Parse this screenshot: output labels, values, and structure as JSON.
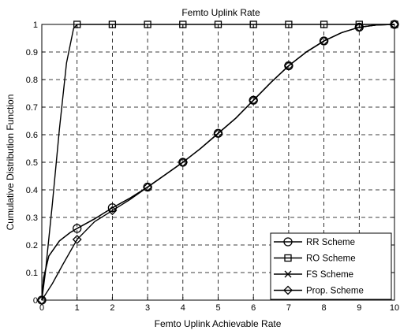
{
  "chart_data": {
    "type": "line",
    "title": "Femto Uplink Rate",
    "xlabel": "Femto Uplink Achievable Rate",
    "ylabel": "Cumulative Distribution Function",
    "xlim": [
      0,
      10
    ],
    "ylim": [
      0,
      1
    ],
    "xticks": [
      0,
      1,
      2,
      3,
      4,
      5,
      6,
      7,
      8,
      9,
      10
    ],
    "yticks": [
      0,
      0.1,
      0.2,
      0.3,
      0.4,
      0.5,
      0.6,
      0.7,
      0.8,
      0.9,
      1
    ],
    "grid": true,
    "legend_position": "bottom-right",
    "colors": {
      "line": "#000000",
      "background": "#ffffff"
    },
    "series": [
      {
        "name": "RR Scheme",
        "marker": "circle",
        "x": [
          0,
          0.05,
          0.2,
          0.5,
          0.8,
          1,
          1.5,
          2,
          2.5,
          3,
          3.5,
          4,
          4.5,
          5,
          5.5,
          6,
          6.5,
          7,
          7.5,
          8,
          8.5,
          9,
          9.5,
          10
        ],
        "y": [
          0,
          0.08,
          0.16,
          0.215,
          0.245,
          0.26,
          0.295,
          0.335,
          0.37,
          0.41,
          0.455,
          0.5,
          0.55,
          0.605,
          0.66,
          0.725,
          0.79,
          0.85,
          0.9,
          0.94,
          0.97,
          0.99,
          0.998,
          1
        ],
        "markers_x": [
          0,
          1,
          2,
          3,
          4,
          5,
          6,
          7,
          8,
          9,
          10
        ]
      },
      {
        "name": "RO Scheme",
        "marker": "square",
        "x": [
          0,
          0.1,
          0.3,
          0.5,
          0.7,
          0.9,
          1,
          2,
          3,
          4,
          5,
          6,
          7,
          8,
          9,
          10
        ],
        "y": [
          0,
          0.1,
          0.35,
          0.62,
          0.86,
          0.985,
          1,
          1,
          1,
          1,
          1,
          1,
          1,
          1,
          1,
          1
        ],
        "markers_x": [
          1,
          2,
          3,
          4,
          5,
          6,
          7,
          8,
          9,
          10
        ]
      },
      {
        "name": "FS Scheme",
        "marker": "x",
        "x": [
          0,
          0.05,
          0.2,
          0.5,
          0.8,
          1,
          1.5,
          2,
          2.5,
          3,
          3.5,
          4,
          4.5,
          5,
          5.5,
          6,
          6.5,
          7,
          7.5,
          8,
          8.5,
          9,
          9.5,
          10
        ],
        "y": [
          0,
          0.08,
          0.16,
          0.215,
          0.245,
          0.26,
          0.295,
          0.335,
          0.37,
          0.41,
          0.455,
          0.5,
          0.55,
          0.605,
          0.66,
          0.725,
          0.79,
          0.85,
          0.9,
          0.94,
          0.97,
          0.99,
          0.998,
          1
        ],
        "markers_x": []
      },
      {
        "name": "Prop. Scheme",
        "marker": "diamond",
        "x": [
          0,
          0.3,
          0.6,
          1,
          1.5,
          2,
          2.5,
          3,
          3.5,
          4,
          4.5,
          5,
          5.5,
          6,
          6.5,
          7,
          7.5,
          8,
          8.5,
          9,
          9.5,
          10
        ],
        "y": [
          0,
          0.06,
          0.13,
          0.22,
          0.285,
          0.325,
          0.365,
          0.41,
          0.455,
          0.5,
          0.55,
          0.605,
          0.66,
          0.725,
          0.79,
          0.85,
          0.9,
          0.94,
          0.97,
          0.99,
          0.998,
          1
        ],
        "markers_x": [
          0,
          1,
          2,
          3,
          4,
          5,
          6,
          7,
          8,
          9,
          10
        ]
      }
    ]
  }
}
